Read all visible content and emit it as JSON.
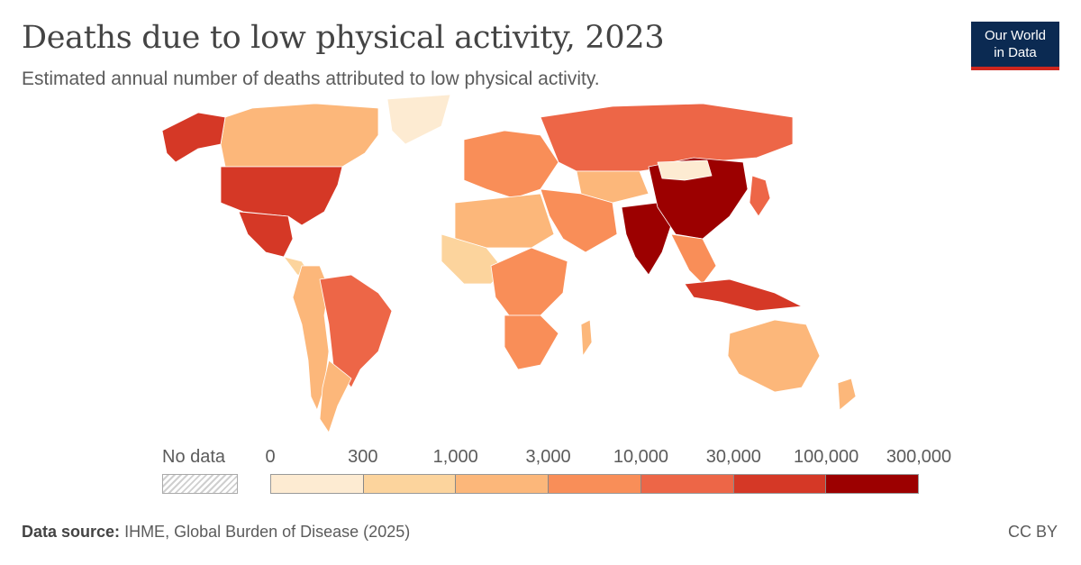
{
  "header": {
    "title": "Deaths due to low physical activity, 2023",
    "subtitle": "Estimated annual number of deaths attributed to low physical activity."
  },
  "logo": {
    "line1": "Our World",
    "line2": "in Data"
  },
  "legend": {
    "no_data_label": "No data",
    "ticks": [
      "0",
      "300",
      "1,000",
      "3,000",
      "10,000",
      "30,000",
      "100,000",
      "300,000"
    ],
    "colors": [
      "#fdebd2",
      "#fcd49d",
      "#fcb77a",
      "#f98e58",
      "#ed6647",
      "#d53826",
      "#9c0000"
    ]
  },
  "map": {
    "regions": [
      {
        "name": "North America (Canada)",
        "bin": 2
      },
      {
        "name": "United States",
        "bin": 5
      },
      {
        "name": "Alaska",
        "bin": 5
      },
      {
        "name": "Greenland",
        "bin": 0
      },
      {
        "name": "Mexico",
        "bin": 5
      },
      {
        "name": "Central America",
        "bin": 1
      },
      {
        "name": "South America (west)",
        "bin": 2
      },
      {
        "name": "Brazil",
        "bin": 4
      },
      {
        "name": "Argentina",
        "bin": 2
      },
      {
        "name": "Western Europe",
        "bin": 3
      },
      {
        "name": "Russia",
        "bin": 4
      },
      {
        "name": "Central Asia",
        "bin": 2
      },
      {
        "name": "Middle East",
        "bin": 3
      },
      {
        "name": "North Africa",
        "bin": 2
      },
      {
        "name": "Sub-Saharan Africa",
        "bin": 1
      },
      {
        "name": "Central Africa",
        "bin": 3
      },
      {
        "name": "South Africa",
        "bin": 3
      },
      {
        "name": "India",
        "bin": 6
      },
      {
        "name": "China",
        "bin": 6
      },
      {
        "name": "Mongolia",
        "bin": 0
      },
      {
        "name": "Southeast Asia",
        "bin": 3
      },
      {
        "name": "Japan",
        "bin": 4
      },
      {
        "name": "Indonesia",
        "bin": 5
      },
      {
        "name": "Australia",
        "bin": 2
      },
      {
        "name": "New Zealand",
        "bin": 2
      },
      {
        "name": "Madagascar",
        "bin": 2
      }
    ]
  },
  "footer": {
    "source_label": "Data source:",
    "source_text": "IHME, Global Burden of Disease (2025)",
    "license": "CC BY"
  }
}
